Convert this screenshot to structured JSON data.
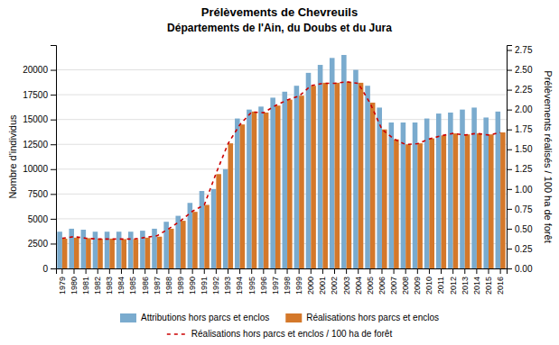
{
  "chart_data": {
    "type": "bar",
    "title": "Prélèvements de Chevreuils",
    "subtitle": "Départements de l'Ain, du Doubs et du Jura",
    "categories": [
      "1979",
      "1980",
      "1981",
      "1982",
      "1983",
      "1984",
      "1985",
      "1986",
      "1987",
      "1988",
      "1989",
      "1990",
      "1991",
      "1992",
      "1993",
      "1994",
      "1995",
      "1996",
      "1997",
      "1998",
      "1999",
      "2000",
      "2001",
      "2002",
      "2003",
      "2004",
      "2005",
      "2006",
      "2007",
      "2008",
      "2009",
      "2010",
      "2011",
      "2012",
      "2013",
      "2014",
      "2015",
      "2016"
    ],
    "series": [
      {
        "name": "Attributions hors parcs et enclos",
        "type": "bar",
        "color": "#7aabce",
        "values": [
          3700,
          4000,
          3900,
          3700,
          3700,
          3700,
          3700,
          3800,
          4000,
          4700,
          5300,
          6600,
          7800,
          8000,
          10000,
          15100,
          16000,
          16300,
          17200,
          17800,
          18400,
          19700,
          20500,
          21200,
          21500,
          20000,
          18400,
          16200,
          14700,
          14700,
          14700,
          15100,
          15600,
          15700,
          16000,
          16200,
          15200,
          15800
        ]
      },
      {
        "name": "Réalisations hors parcs et enclos",
        "type": "bar",
        "color": "#d4782a",
        "values": [
          3000,
          3100,
          3050,
          3000,
          3000,
          2950,
          2950,
          3100,
          3200,
          4000,
          4800,
          5700,
          6400,
          9500,
          12600,
          14500,
          15800,
          15700,
          16400,
          17000,
          17400,
          18400,
          18700,
          18700,
          18800,
          18700,
          16700,
          14000,
          13000,
          12500,
          12600,
          13100,
          13400,
          13600,
          13500,
          13600,
          13500,
          13700
        ]
      },
      {
        "name": "Réalisations hors parcs et enclos / 100 ha de forêt",
        "type": "line",
        "axis": "y2",
        "color": "#cc0000",
        "line_style": "dashed",
        "values": [
          0.38,
          0.4,
          0.38,
          0.37,
          0.37,
          0.37,
          0.37,
          0.39,
          0.41,
          0.5,
          0.6,
          0.72,
          0.8,
          1.2,
          1.57,
          1.81,
          1.97,
          1.96,
          2.05,
          2.12,
          2.17,
          2.3,
          2.33,
          2.33,
          2.35,
          2.33,
          2.08,
          1.75,
          1.63,
          1.56,
          1.57,
          1.63,
          1.67,
          1.7,
          1.68,
          1.7,
          1.68,
          1.71
        ]
      }
    ],
    "ylabel": "Nombre d'individus",
    "y2label": "Prélèvements réalisés / 100 ha de forêt",
    "ylim": [
      0,
      22500
    ],
    "yticks": [
      0,
      2500,
      5000,
      7500,
      10000,
      12500,
      15000,
      17500,
      20000
    ],
    "y2lim": [
      0,
      2.8125
    ],
    "y2ticks": [
      {
        "value": 0,
        "label": "0.00"
      },
      0.25,
      {
        "value": 0.5,
        "label": "0.50"
      },
      0.75,
      {
        "value": 1.0,
        "label": "1.00"
      },
      1.25,
      {
        "value": 1.5,
        "label": "1.50"
      },
      1.75,
      {
        "value": 2.0,
        "label": "2.00"
      },
      2.25,
      {
        "value": 2.5,
        "label": "2.50"
      },
      2.75
    ],
    "grid": true,
    "legend": "bottom"
  }
}
